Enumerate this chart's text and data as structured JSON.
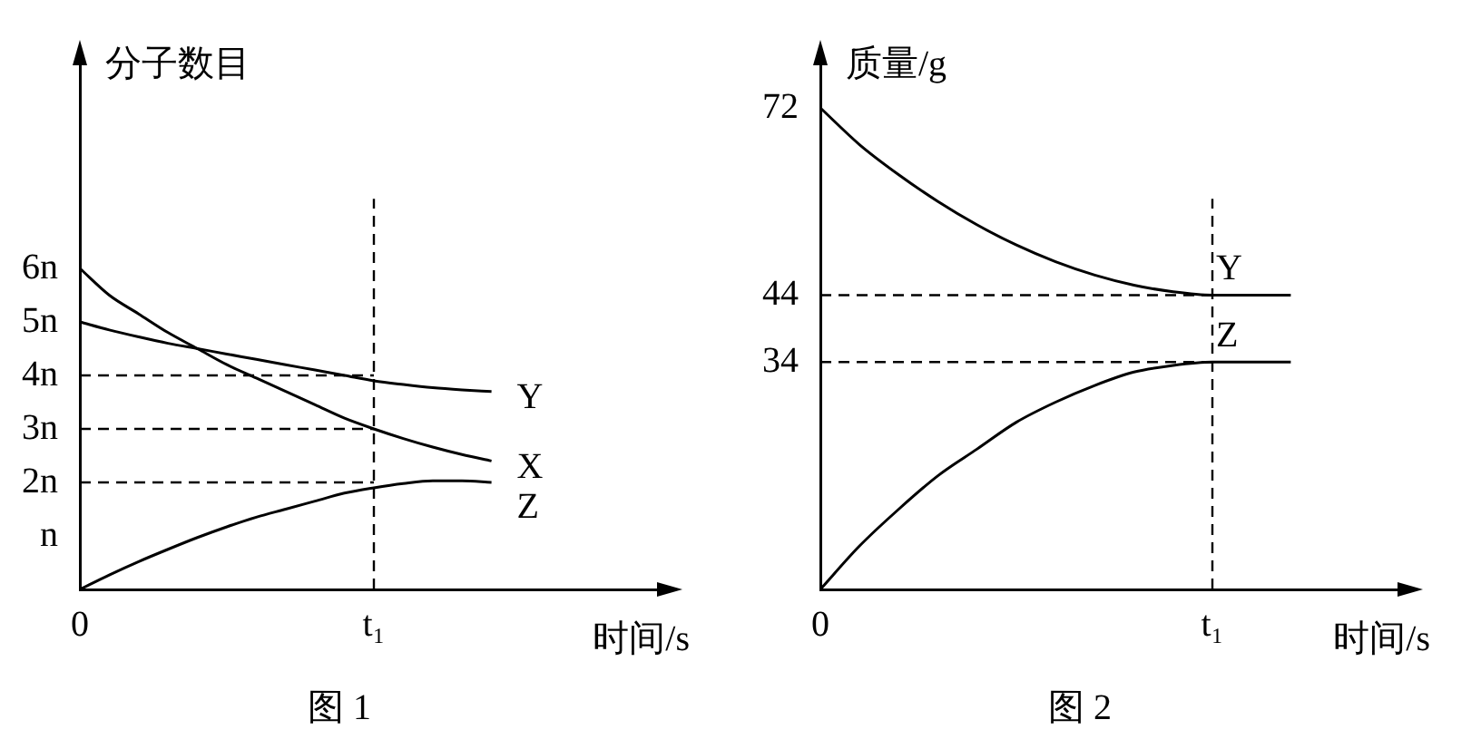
{
  "chart_data": [
    {
      "type": "line",
      "title": "图 1",
      "ylabel": "分子数目",
      "xlabel": "时间/s",
      "categories": [
        "0",
        null,
        null,
        null,
        null,
        null,
        null,
        null,
        null,
        null,
        "t₁",
        null,
        null,
        null,
        null,
        null,
        null,
        null,
        null,
        null,
        null
      ],
      "series": [
        {
          "name": "Y",
          "color": "#000000",
          "values": [
            5,
            4.85,
            4.72,
            4.6,
            4.5,
            4.4,
            4.3,
            4.2,
            4.1,
            4.0,
            3.9,
            3.83,
            3.77,
            3.73,
            3.7,
            null,
            null,
            null,
            null,
            null,
            null
          ]
        },
        {
          "name": "X",
          "color": "#000000",
          "values": [
            6,
            5.5,
            5.15,
            4.8,
            4.5,
            4.2,
            3.95,
            3.7,
            3.45,
            3.2,
            3.0,
            2.82,
            2.66,
            2.52,
            2.4,
            null,
            null,
            null,
            null,
            null,
            null
          ]
        },
        {
          "name": "Z",
          "color": "#000000",
          "values": [
            0,
            0.27,
            0.52,
            0.75,
            0.97,
            1.17,
            1.35,
            1.5,
            1.65,
            1.8,
            1.9,
            1.98,
            2.03,
            2.03,
            2.0,
            null,
            null,
            null,
            null,
            null,
            null
          ]
        }
      ],
      "ylim": [
        0,
        10
      ],
      "yticks": [
        {
          "value": 1,
          "label": "n"
        },
        {
          "value": 2,
          "label": "2n"
        },
        {
          "value": 3,
          "label": "3n"
        },
        {
          "value": 4,
          "label": "4n"
        },
        {
          "value": 5,
          "label": "5n"
        },
        {
          "value": 6,
          "label": "6n"
        }
      ],
      "ref_lines": [
        {
          "axis": "x",
          "value": "t₁",
          "line_style": "dashed"
        },
        {
          "axis": "y",
          "value": 4,
          "line_style": "dashed"
        },
        {
          "axis": "y",
          "value": 3,
          "line_style": "dashed"
        },
        {
          "axis": "y",
          "value": 2,
          "line_style": "dashed"
        }
      ],
      "grid": false,
      "legend": false,
      "marker": "none",
      "line_style": "solid"
    },
    {
      "type": "line",
      "title": "图 2",
      "ylabel": "质量/g",
      "xlabel": "时间/s",
      "categories": [
        "0",
        null,
        null,
        null,
        null,
        null,
        null,
        null,
        null,
        null,
        "t₁",
        null,
        null,
        null,
        null,
        null
      ],
      "series": [
        {
          "name": "Y",
          "color": "#000000",
          "values": [
            72,
            66.5,
            62,
            58,
            54.5,
            51.5,
            49,
            47,
            45.5,
            44.5,
            44,
            44,
            44,
            null,
            null,
            null
          ]
        },
        {
          "name": "Z",
          "color": "#000000",
          "values": [
            0,
            6.5,
            12,
            17,
            21,
            25,
            28,
            30.5,
            32.5,
            33.5,
            34,
            34,
            34,
            null,
            null,
            null
          ]
        }
      ],
      "ylim": [
        0,
        80
      ],
      "yticks": [
        34,
        44,
        72
      ],
      "ref_lines": [
        {
          "axis": "x",
          "value": "t₁",
          "line_style": "dashed"
        },
        {
          "axis": "y",
          "value": 44,
          "line_style": "dashed"
        },
        {
          "axis": "y",
          "value": 34,
          "line_style": "dashed"
        }
      ],
      "grid": false,
      "legend": false,
      "marker": "none",
      "line_style": "solid"
    }
  ]
}
